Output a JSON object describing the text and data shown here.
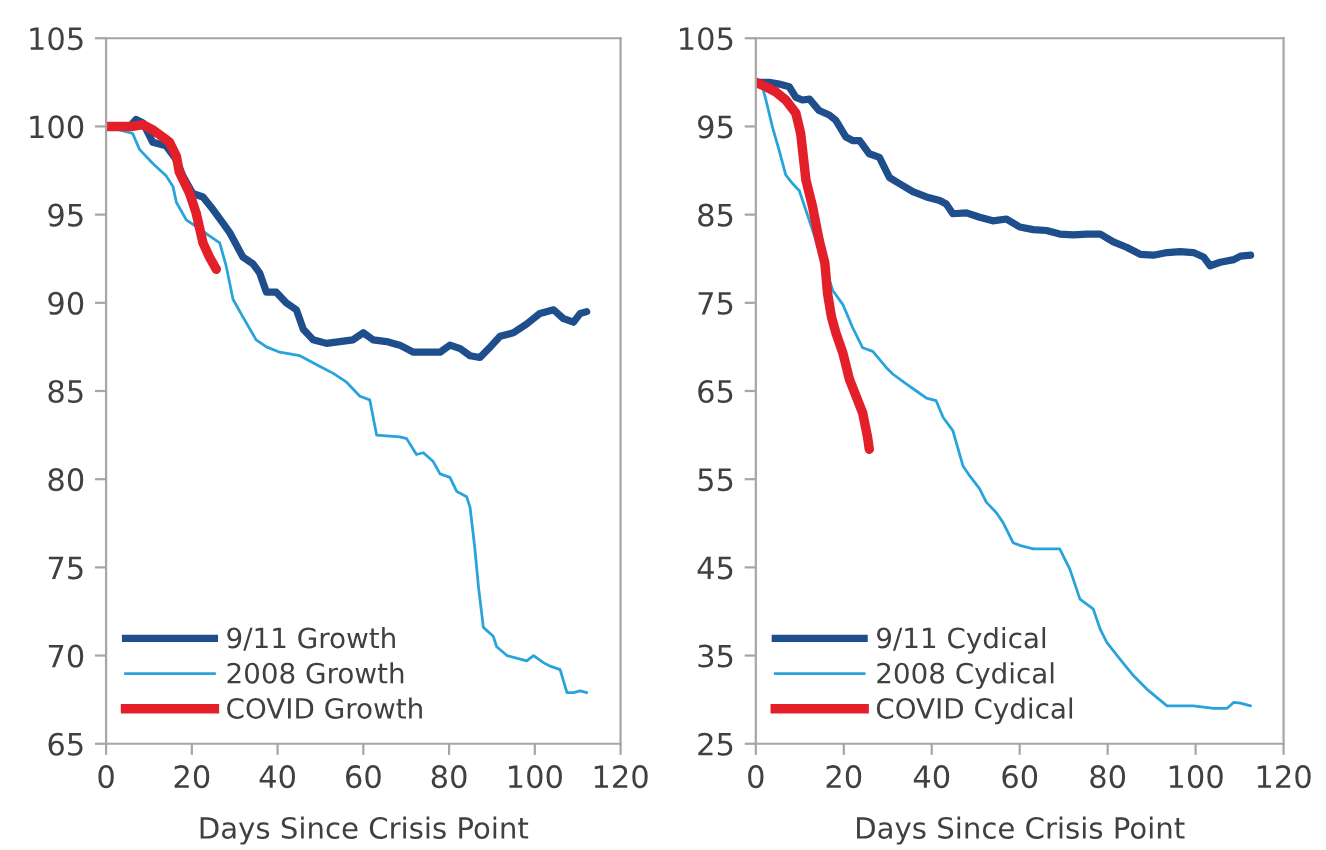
{
  "chart_data": [
    {
      "type": "line",
      "xlabel": "Days Since Crisis Point",
      "xlim": [
        0,
        120
      ],
      "xticks": [
        0,
        20,
        40,
        60,
        80,
        100,
        120
      ],
      "ylim": [
        65,
        105
      ],
      "yticks": [
        65,
        70,
        75,
        80,
        85,
        90,
        95,
        100,
        105
      ],
      "grid": false,
      "legend": "bottom left",
      "marker": "none",
      "line_style": "solid",
      "series": [
        {
          "name": "9/11 Growth",
          "color": "#1f4e8c",
          "x": [
            0,
            5.5,
            7,
            8.6,
            10.9,
            14,
            16.4,
            17.9,
            20.2,
            22.6,
            24.9,
            27.3,
            28.8,
            31.9,
            34.3,
            35.8,
            37.4,
            39.7,
            42,
            44.4,
            46,
            48.3,
            51.4,
            54.5,
            57.6,
            60,
            62.3,
            65.4,
            68.5,
            71.7,
            74.8,
            77.9,
            80.2,
            82.6,
            84.9,
            87.2,
            89.6,
            91.9,
            95,
            98.1,
            101.2,
            104.4,
            106.7,
            109,
            110.6,
            112.1
          ],
          "values": [
            100,
            100,
            100.4,
            100.2,
            99.1,
            98.9,
            98.1,
            97.2,
            96.2,
            96.0,
            95.3,
            94.5,
            94.0,
            92.6,
            92.2,
            91.7,
            90.6,
            90.6,
            90.0,
            89.6,
            88.5,
            87.9,
            87.7,
            87.8,
            87.9,
            88.3,
            87.9,
            87.8,
            87.6,
            87.2,
            87.2,
            87.2,
            87.6,
            87.4,
            87.0,
            86.9,
            87.5,
            88.1,
            88.3,
            88.8,
            89.4,
            89.6,
            89.1,
            88.9,
            89.4,
            89.5
          ]
        },
        {
          "name": "2008 Growth",
          "color": "#29a3dc",
          "x": [
            0,
            3.1,
            6.2,
            7.8,
            10.9,
            14,
            15.6,
            16.4,
            18.7,
            21.8,
            24.1,
            26.5,
            28,
            29.6,
            31.9,
            35,
            37.4,
            40.5,
            45.2,
            49.8,
            53,
            56.1,
            59.2,
            61.5,
            63.1,
            68.5,
            70.1,
            72.4,
            74,
            76.3,
            77.9,
            80.2,
            81.8,
            84.1,
            84.9,
            86,
            86.9,
            88,
            90.3,
            91.1,
            93.5,
            96.6,
            98.1,
            99.7,
            102,
            103.6,
            105.9,
            107.5,
            109,
            110.6,
            112.1
          ],
          "values": [
            100,
            99.8,
            99.6,
            98.7,
            97.9,
            97.2,
            96.6,
            95.7,
            94.7,
            94.2,
            93.8,
            93.4,
            92.1,
            90.2,
            89.2,
            87.9,
            87.5,
            87.2,
            87.0,
            86.4,
            86.0,
            85.5,
            84.7,
            84.5,
            82.5,
            82.4,
            82.3,
            81.4,
            81.5,
            81.0,
            80.3,
            80.1,
            79.3,
            79.0,
            78.4,
            76.1,
            73.8,
            71.6,
            71.1,
            70.5,
            70.0,
            69.8,
            69.7,
            70.0,
            69.6,
            69.4,
            69.2,
            67.9,
            67.9,
            68.0,
            67.9
          ]
        },
        {
          "name": "COVID Growth",
          "color": "#e3202a",
          "x": [
            0,
            6.2,
            8.6,
            10.9,
            13.2,
            14.8,
            16.4,
            17.1,
            19.5,
            21,
            22.6,
            24.1,
            25.7
          ],
          "values": [
            100,
            100,
            100.1,
            99.8,
            99.4,
            99.1,
            98.3,
            97.4,
            96.2,
            95.1,
            93.4,
            92.6,
            91.9
          ]
        }
      ]
    },
    {
      "type": "line",
      "xlabel": "Days Since Crisis Point",
      "xlim": [
        0,
        120
      ],
      "xticks": [
        0,
        20,
        40,
        60,
        80,
        100,
        120
      ],
      "ylim": [
        25,
        105
      ],
      "yticks": [
        25,
        35,
        45,
        55,
        65,
        75,
        85,
        95,
        105
      ],
      "grid": false,
      "legend": "bottom left",
      "marker": "none",
      "line_style": "solid",
      "series": [
        {
          "name": "9/11 Cydical",
          "color": "#1f4e8c",
          "x": [
            0,
            3,
            5.3,
            7.6,
            9.1,
            10.6,
            12.2,
            14.4,
            16.7,
            18.2,
            20.5,
            22,
            23.6,
            25.8,
            28.1,
            30.4,
            32.7,
            35.7,
            38.8,
            41.8,
            43.3,
            44.8,
            47.9,
            50.9,
            53.9,
            57,
            60,
            63.1,
            66.1,
            69.1,
            72.2,
            75.2,
            78.3,
            81.3,
            84.3,
            87.4,
            90.4,
            93.5,
            96.5,
            99.5,
            101.8,
            103.3,
            105.6,
            108.7,
            110.2,
            112.5
          ],
          "values": [
            100,
            100,
            99.8,
            99.5,
            98.3,
            98.0,
            98.1,
            96.8,
            96.3,
            95.7,
            93.8,
            93.4,
            93.4,
            91.9,
            91.5,
            89.2,
            88.5,
            87.6,
            87.0,
            86.6,
            86.2,
            85.1,
            85.2,
            84.7,
            84.3,
            84.5,
            83.6,
            83.3,
            83.2,
            82.8,
            82.7,
            82.8,
            82.8,
            81.9,
            81.3,
            80.5,
            80.4,
            80.7,
            80.8,
            80.7,
            80.2,
            79.2,
            79.6,
            79.9,
            80.3,
            80.4
          ]
        },
        {
          "name": "2008 Cydical",
          "color": "#29a3dc",
          "x": [
            0,
            1.5,
            2.3,
            3.8,
            5.3,
            6.8,
            8.4,
            9.9,
            17.5,
            19.8,
            22,
            24.3,
            26.6,
            29.6,
            31.2,
            34.2,
            36.5,
            38.8,
            41,
            42.6,
            44.8,
            47.1,
            48.6,
            50.9,
            52.4,
            54.7,
            56.2,
            58.5,
            60,
            63.1,
            69.1,
            71.4,
            73.7,
            76.7,
            78.3,
            79.8,
            82.8,
            85.9,
            88.9,
            93.5,
            99.5,
            104.1,
            107.1,
            108.7,
            110.2,
            112.5
          ],
          "values": [
            100,
            99.5,
            98,
            94.9,
            92.3,
            89.5,
            88.5,
            87.7,
            76.4,
            74.8,
            72.2,
            69.9,
            69.5,
            67.7,
            66.9,
            65.8,
            65,
            64.2,
            63.9,
            62,
            60.5,
            56.5,
            55.4,
            53.9,
            52.4,
            51.2,
            50.1,
            47.8,
            47.5,
            47.1,
            47.1,
            44.8,
            41.4,
            40.3,
            38,
            36.5,
            34.6,
            32.7,
            31.2,
            29.3,
            29.3,
            29,
            29,
            29.7,
            29.6,
            29.3
          ]
        },
        {
          "name": "COVID Cydical",
          "color": "#e3202a",
          "x": [
            0,
            2.3,
            4.6,
            6.8,
            9.1,
            10.2,
            11.4,
            12.9,
            14.4,
            15.7,
            16.3,
            17.2,
            18.2,
            19.8,
            21.3,
            22.8,
            24.3,
            25.4,
            25.8
          ],
          "values": [
            100,
            99.5,
            98.9,
            98,
            96.5,
            94.2,
            88.9,
            85.9,
            82.1,
            79.5,
            76.1,
            73.4,
            71.6,
            69.3,
            66.3,
            64.4,
            62.5,
            59.8,
            58.4
          ]
        }
      ]
    }
  ]
}
